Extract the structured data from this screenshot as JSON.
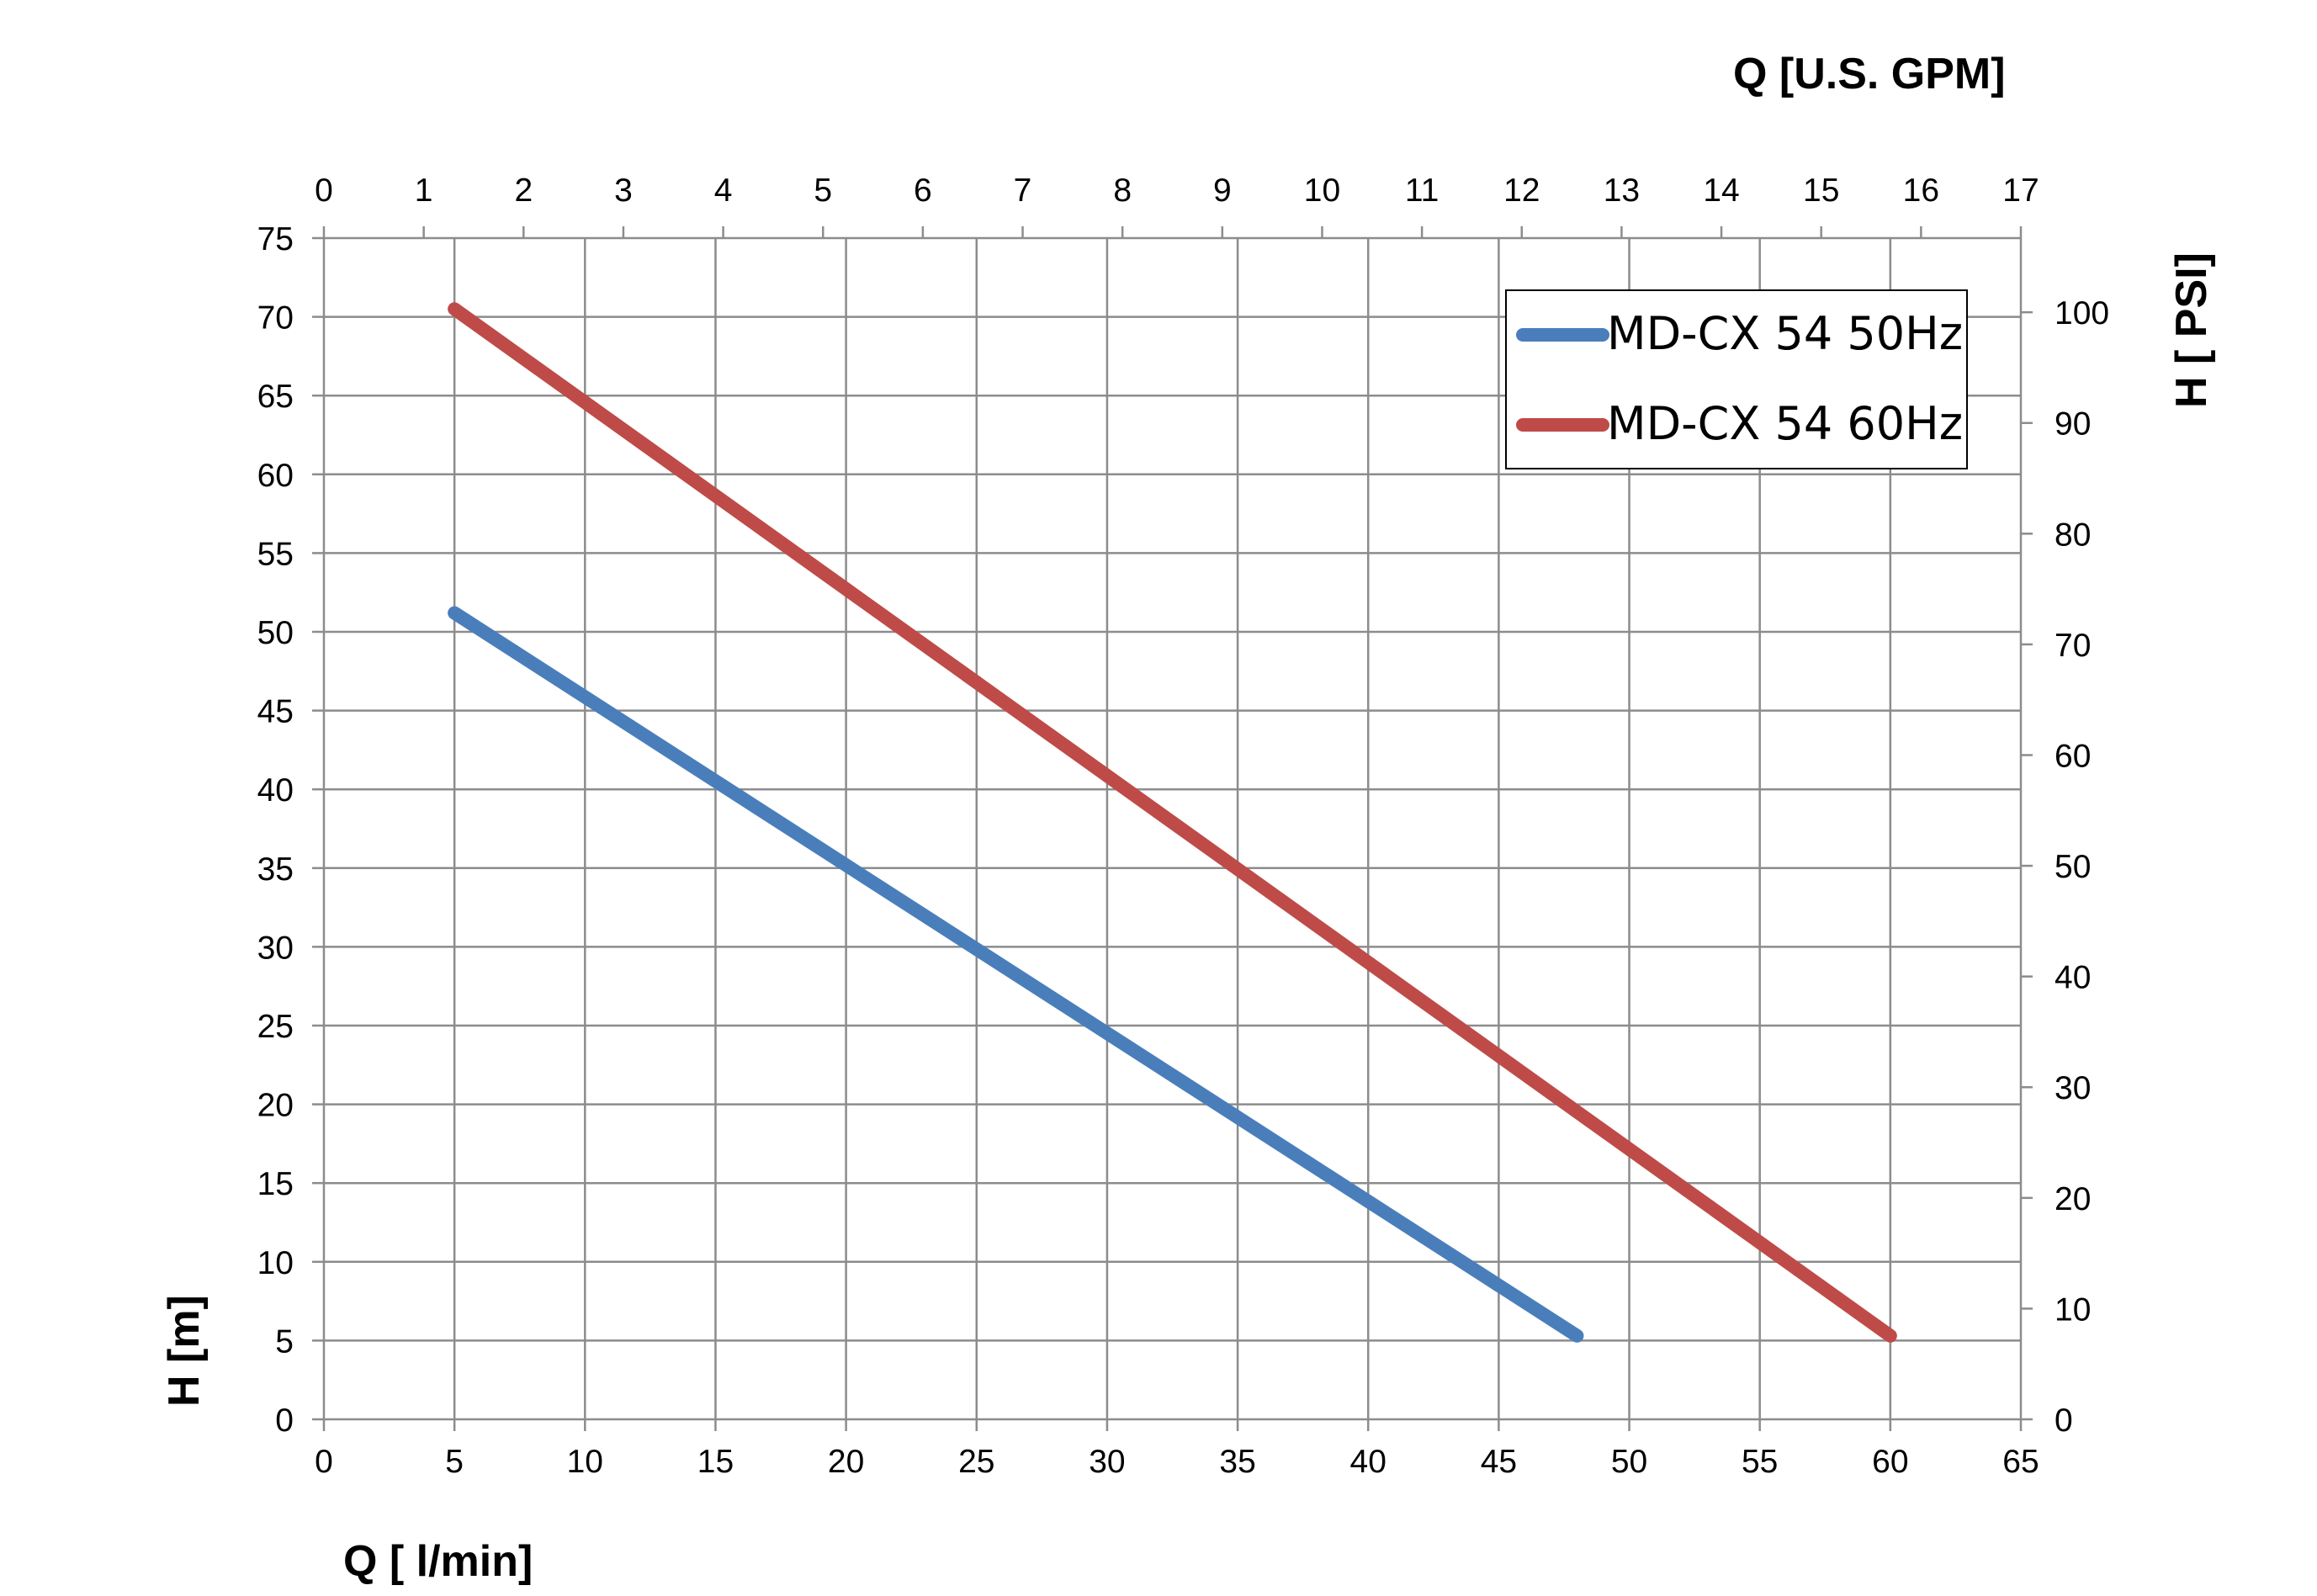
{
  "chart_data": {
    "type": "line",
    "xlabel": "Q [ l/min]",
    "x2label": "Q  [U.S. GPM]",
    "ylabel": "H [m]",
    "y2label": "H [ PSI]",
    "xlim": [
      0,
      65
    ],
    "ylim": [
      0,
      75
    ],
    "x2lim": [
      0,
      17
    ],
    "y2lim": [
      0,
      106.7
    ],
    "x_ticks": [
      "0",
      "5",
      "10",
      "15",
      "20",
      "25",
      "30",
      "35",
      "40",
      "45",
      "50",
      "55",
      "60",
      "65"
    ],
    "y_ticks": [
      "0",
      "5",
      "10",
      "15",
      "20",
      "25",
      "30",
      "35",
      "40",
      "45",
      "50",
      "55",
      "60",
      "65",
      "70",
      "75"
    ],
    "x2_ticks": [
      "0",
      "1",
      "2",
      "3",
      "4",
      "5",
      "6",
      "7",
      "8",
      "9",
      "10",
      "11",
      "12",
      "13",
      "14",
      "15",
      "16",
      "17"
    ],
    "y2_ticks": [
      "0",
      "10",
      "20",
      "30",
      "40",
      "50",
      "60",
      "70",
      "80",
      "90",
      "100"
    ],
    "grid": true,
    "legend": "top-right",
    "series": [
      {
        "name": "MD-CX 54 50Hz",
        "color": "#4a7ebb",
        "x": [
          5,
          48
        ],
        "y": [
          51.2,
          5.3
        ]
      },
      {
        "name": "MD-CX 54 60Hz",
        "color": "#be4b48",
        "x": [
          5,
          60
        ],
        "y": [
          70.5,
          5.3
        ]
      }
    ]
  }
}
